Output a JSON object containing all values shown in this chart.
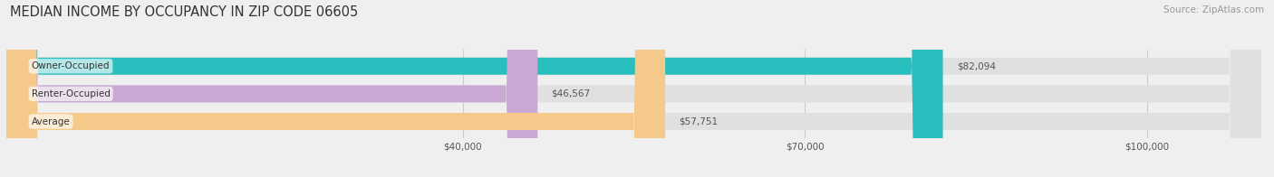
{
  "title": "MEDIAN INCOME BY OCCUPANCY IN ZIP CODE 06605",
  "source": "Source: ZipAtlas.com",
  "categories": [
    "Owner-Occupied",
    "Renter-Occupied",
    "Average"
  ],
  "values": [
    82094,
    46567,
    57751
  ],
  "labels": [
    "$82,094",
    "$46,567",
    "$57,751"
  ],
  "bar_colors": [
    "#2abfbf",
    "#c9a8d4",
    "#f5c98a"
  ],
  "background_color": "#efefef",
  "bar_bg_color": "#e0e0e0",
  "xlim": [
    0,
    110000
  ],
  "xticks": [
    40000,
    70000,
    100000
  ],
  "xticklabels": [
    "$40,000",
    "$70,000",
    "$100,000"
  ],
  "title_fontsize": 10.5,
  "source_fontsize": 7.5,
  "label_fontsize": 7.5,
  "tick_fontsize": 7.5,
  "bar_height": 0.62,
  "bar_label_color": "#555555",
  "cat_label_color": "#333333"
}
